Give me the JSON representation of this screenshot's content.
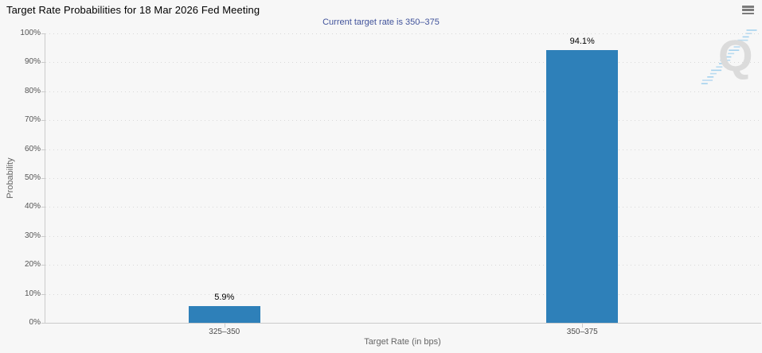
{
  "chart_data": {
    "type": "bar",
    "title": "Target Rate Probabilities for 18 Mar 2026 Fed Meeting",
    "subtitle": "Current target rate is 350–375",
    "categories": [
      "325–350",
      "350–375"
    ],
    "values": [
      5.9,
      94.1
    ],
    "data_labels": [
      "5.9%",
      "94.1%"
    ],
    "xlabel": "Target Rate (in bps)",
    "ylabel": "Probability",
    "ylim": [
      0,
      100
    ],
    "ytick_step": 10,
    "ytick_labels": [
      "0%",
      "10%",
      "20%",
      "30%",
      "40%",
      "50%",
      "60%",
      "70%",
      "80%",
      "90%",
      "100%"
    ],
    "legend": "none",
    "grid": "horizontal-dotted",
    "colors": {
      "bar": "#2E80B9",
      "background": "#F7F7F7",
      "subtitle_text": "#41539B",
      "grid_line": "#D9D9D9",
      "axis_line": "#CBCBCB"
    }
  },
  "toolbar": {
    "menu_icon": "hamburger"
  },
  "watermark": {
    "letter": "Q"
  }
}
